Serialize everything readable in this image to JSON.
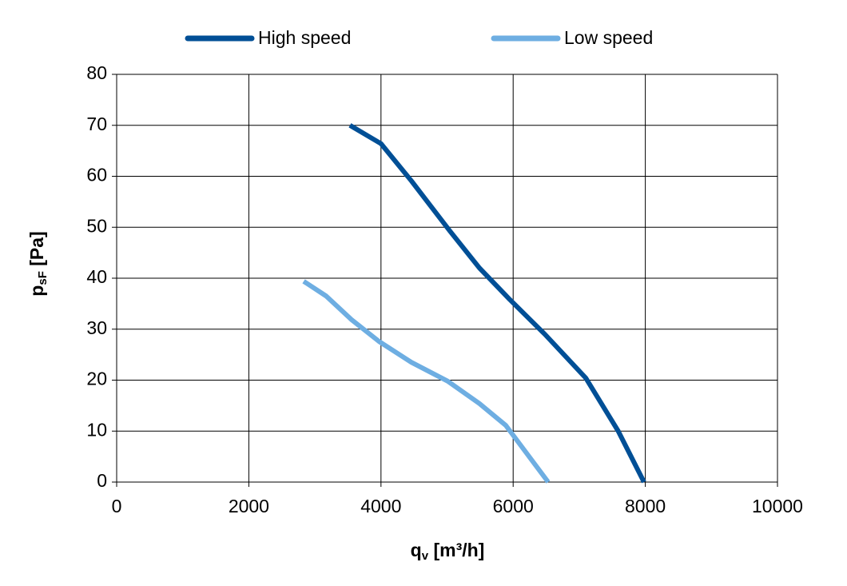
{
  "chart_data": {
    "type": "line",
    "x_label": {
      "main": "q",
      "sub": "v",
      "rest": " [m³/h]"
    },
    "y_label": {
      "main": "p",
      "sub": "sF",
      "rest": " [Pa]"
    },
    "xlim": [
      0,
      10000
    ],
    "xticks": [
      0,
      2000,
      4000,
      6000,
      8000,
      10000
    ],
    "ylim": [
      0,
      80
    ],
    "yticks": [
      0,
      10,
      20,
      30,
      40,
      50,
      60,
      70,
      80
    ],
    "grid": true,
    "legend": "top",
    "series": [
      {
        "name": "High speed",
        "color": "#004f96",
        "x": [
          3530,
          4000,
          4460,
          5040,
          5490,
          5950,
          6480,
          7100,
          7590,
          7980
        ],
        "values": [
          70,
          66.4,
          59.1,
          49.3,
          42,
          35.8,
          29,
          20.4,
          10,
          0
        ]
      },
      {
        "name": "Low speed",
        "color": "#6eaee2",
        "x": [
          2830,
          3170,
          3560,
          3970,
          4460,
          5010,
          5490,
          5890,
          6530
        ],
        "values": [
          39.4,
          36.5,
          31.8,
          27.6,
          23.5,
          19.8,
          15.4,
          11.1,
          0
        ]
      }
    ]
  }
}
